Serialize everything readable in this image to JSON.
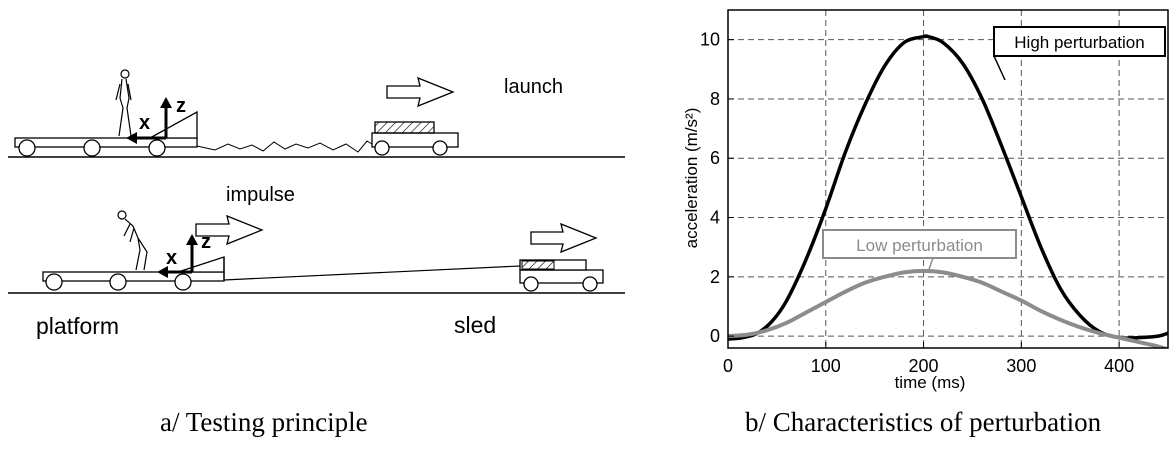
{
  "diagram": {
    "labels": {
      "launch": "launch",
      "impulse": "impulse",
      "platform": "platform",
      "sled": "sled",
      "axis_x": "x",
      "axis_z": "z"
    },
    "caption": "a/ Testing principle"
  },
  "chart_caption": "b/ Characteristics of perturbation",
  "chart_data": {
    "type": "line",
    "xlabel": "time (ms)",
    "ylabel": "acceleration (m/s²)",
    "xlim": [
      0,
      450
    ],
    "ylim": [
      -0.4,
      11
    ],
    "xticks": [
      0,
      100,
      200,
      300,
      400
    ],
    "yticks": [
      0,
      2,
      4,
      6,
      8,
      10
    ],
    "grid": true,
    "series": [
      {
        "name": "High perturbation",
        "color": "#000000",
        "x": [
          0,
          15,
          30,
          45,
          60,
          80,
          100,
          120,
          140,
          160,
          180,
          200,
          205,
          220,
          240,
          260,
          280,
          300,
          320,
          340,
          360,
          380,
          400,
          420,
          440,
          450
        ],
        "y": [
          -0.1,
          -0.05,
          0.1,
          0.5,
          1.2,
          2.6,
          4.3,
          6.2,
          7.8,
          9.1,
          9.9,
          10.1,
          10.1,
          9.9,
          9.2,
          8.0,
          6.4,
          4.7,
          3.0,
          1.6,
          0.7,
          0.15,
          -0.05,
          -0.05,
          0.0,
          0.1
        ]
      },
      {
        "name": "Low perturbation",
        "color": "#8c8c8c",
        "x": [
          0,
          20,
          40,
          60,
          80,
          100,
          120,
          140,
          160,
          180,
          200,
          220,
          240,
          260,
          280,
          300,
          320,
          340,
          360,
          380,
          400,
          420,
          440,
          450
        ],
        "y": [
          0.0,
          0.05,
          0.2,
          0.45,
          0.8,
          1.15,
          1.5,
          1.8,
          2.0,
          2.15,
          2.2,
          2.15,
          2.0,
          1.8,
          1.5,
          1.2,
          0.85,
          0.55,
          0.3,
          0.1,
          -0.05,
          -0.2,
          -0.35,
          -0.45
        ]
      }
    ],
    "annotations": [
      {
        "text": "High perturbation",
        "series": 0,
        "x": 385,
        "y": 10.0,
        "boxed": true
      },
      {
        "text": "Low perturbation",
        "series": 1,
        "x": 245,
        "y": 3.1,
        "boxed": true
      }
    ]
  }
}
